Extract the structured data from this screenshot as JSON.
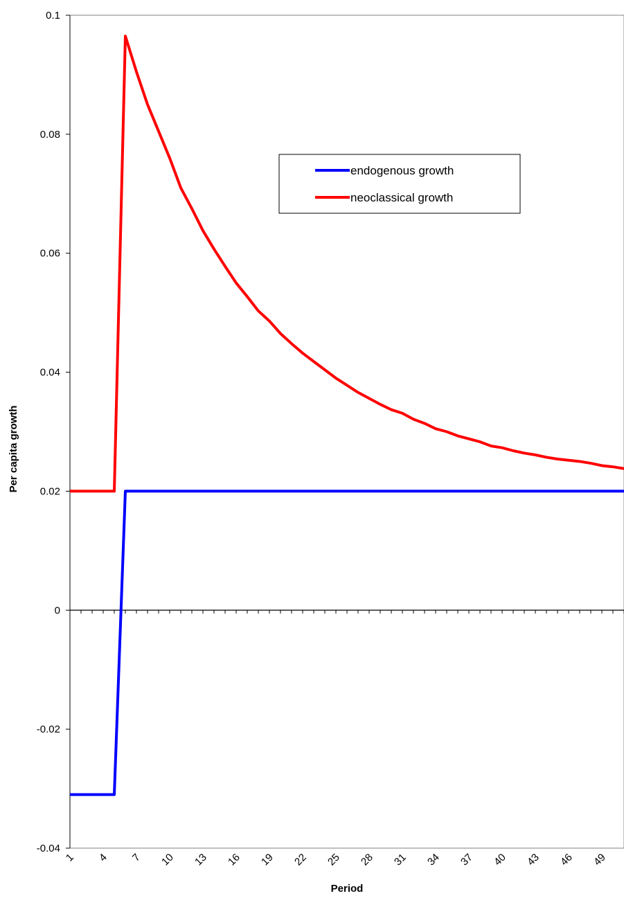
{
  "chart_data": {
    "type": "line",
    "title": "",
    "xlabel": "Period",
    "ylabel": "Per capita growth",
    "x": [
      1,
      2,
      3,
      4,
      5,
      6,
      7,
      8,
      9,
      10,
      11,
      12,
      13,
      14,
      15,
      16,
      17,
      18,
      19,
      20,
      21,
      22,
      23,
      24,
      25,
      26,
      27,
      28,
      29,
      30,
      31,
      32,
      33,
      34,
      35,
      36,
      37,
      38,
      39,
      40,
      41,
      42,
      43,
      44,
      45,
      46,
      47,
      48,
      49,
      50,
      51
    ],
    "x_tick_labels": [
      "1",
      "4",
      "7",
      "10",
      "13",
      "16",
      "19",
      "22",
      "25",
      "28",
      "31",
      "34",
      "37",
      "40",
      "43",
      "46",
      "49"
    ],
    "ylim": [
      -0.04,
      0.1
    ],
    "y_ticks": [
      -0.04,
      -0.02,
      0,
      0.02,
      0.04,
      0.06,
      0.08,
      0.1
    ],
    "y_tick_labels": [
      "-0.04",
      "-0.02",
      "0",
      "0.02",
      "0.04",
      "0.06",
      "0.08",
      "0.1"
    ],
    "grid": false,
    "legend_position": "upper-right-center",
    "series": [
      {
        "name": "endogenous growth",
        "color": "#0000ff",
        "values": [
          -0.031,
          -0.031,
          -0.031,
          -0.031,
          -0.031,
          0.02,
          0.02,
          0.02,
          0.02,
          0.02,
          0.02,
          0.02,
          0.02,
          0.02,
          0.02,
          0.02,
          0.02,
          0.02,
          0.02,
          0.02,
          0.02,
          0.02,
          0.02,
          0.02,
          0.02,
          0.02,
          0.02,
          0.02,
          0.02,
          0.02,
          0.02,
          0.02,
          0.02,
          0.02,
          0.02,
          0.02,
          0.02,
          0.02,
          0.02,
          0.02,
          0.02,
          0.02,
          0.02,
          0.02,
          0.02,
          0.02,
          0.02,
          0.02,
          0.02,
          0.02,
          0.02
        ]
      },
      {
        "name": "neoclassical growth",
        "color": "#ff0000",
        "values": [
          0.02,
          0.02,
          0.02,
          0.02,
          0.02,
          0.0965,
          0.0905,
          0.085,
          0.0805,
          0.076,
          0.071,
          0.0675,
          0.0638,
          0.0607,
          0.0578,
          0.055,
          0.0527,
          0.0503,
          0.0486,
          0.0465,
          0.0448,
          0.0432,
          0.0418,
          0.0404,
          0.039,
          0.0378,
          0.0366,
          0.0356,
          0.0346,
          0.0337,
          0.0331,
          0.0321,
          0.0314,
          0.0305,
          0.03,
          0.0293,
          0.0288,
          0.0283,
          0.0276,
          0.0273,
          0.0268,
          0.0264,
          0.0261,
          0.0257,
          0.0254,
          0.0252,
          0.025,
          0.0247,
          0.0243,
          0.0241,
          0.0238
        ]
      }
    ]
  }
}
